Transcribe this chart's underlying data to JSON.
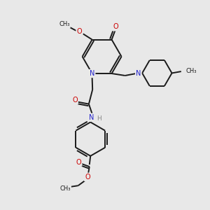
{
  "bg_color": "#e8e8e8",
  "bond_color": "#1a1a1a",
  "N_color": "#2222cc",
  "O_color": "#cc0000",
  "H_color": "#888888",
  "figsize": [
    3.0,
    3.0
  ],
  "dpi": 100,
  "lw": 1.4,
  "fs": 7.0,
  "xlim": [
    0,
    10
  ],
  "ylim": [
    0,
    10
  ]
}
